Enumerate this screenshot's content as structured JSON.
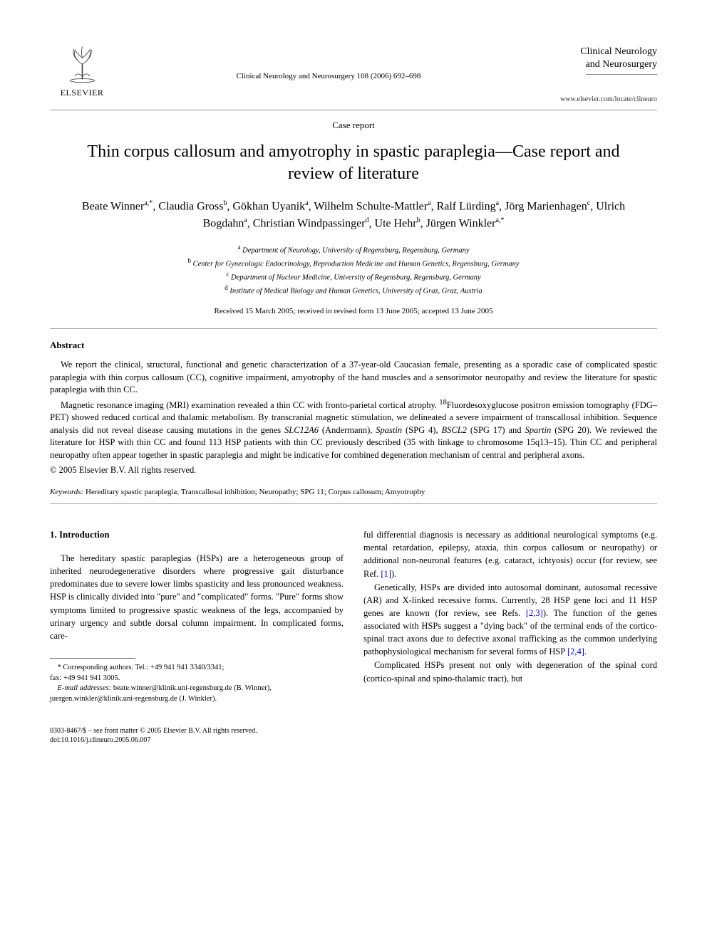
{
  "publisher": {
    "name": "ELSEVIER"
  },
  "journal": {
    "reference": "Clinical Neurology and Neurosurgery 108 (2006) 692–698",
    "title_line1": "Clinical Neurology",
    "title_line2": "and Neurosurgery",
    "url": "www.elsevier.com/locate/clineuro"
  },
  "article": {
    "type": "Case report",
    "title": "Thin corpus callosum and amyotrophy in spastic paraplegia—Case report and review of literature",
    "authors_html": "Beate Winner<sup>a,*</sup>, Claudia Gross<sup>b</sup>, Gökhan Uyanik<sup>a</sup>, Wilhelm Schulte-Mattler<sup>a</sup>, Ralf Lürding<sup>a</sup>, Jörg Marienhagen<sup>c</sup>, Ulrich Bogdahn<sup>a</sup>, Christian Windpassinger<sup>d</sup>, Ute Hehr<sup>b</sup>, Jürgen Winkler<sup>a,*</sup>",
    "affiliations": [
      {
        "sup": "a",
        "text": "Department of Neurology, University of Regensburg, Regensburg, Germany"
      },
      {
        "sup": "b",
        "text": "Center for Gynecologic Endocrinology, Reproduction Medicine and Human Genetics, Regensburg, Germany"
      },
      {
        "sup": "c",
        "text": "Department of Nuclear Medicine, University of Regensburg, Regensburg, Germany"
      },
      {
        "sup": "d",
        "text": "Institute of Medical Biology and Human Genetics, University of Graz, Graz, Austria"
      }
    ],
    "dates": "Received 15 March 2005; received in revised form 13 June 2005; accepted 13 June 2005"
  },
  "abstract": {
    "heading": "Abstract",
    "para1": "We report the clinical, structural, functional and genetic characterization of a 37-year-old Caucasian female, presenting as a sporadic case of complicated spastic paraplegia with thin corpus callosum (CC), cognitive impairment, amyotrophy of the hand muscles and a sensorimotor neuropathy and review the literature for spastic paraplegia with thin CC.",
    "para2_html": "Magnetic resonance imaging (MRI) examination revealed a thin CC with fronto-parietal cortical atrophy. <sup>18</sup>Fluordesoxyglucose positron emission tomography (FDG–PET) showed reduced cortical and thalamic metabolism. By transcranial magnetic stimulation, we delineated a severe impairment of transcallosal inhibition. Sequence analysis did not reveal disease causing mutations in the genes <i>SLC12A6</i> (Andermann), <i>Spastin</i> (SPG 4), <i>BSCL2</i> (SPG 17) and <i>Spartin</i> (SPG 20). We reviewed the literature for HSP with thin CC and found 113 HSP patients with thin CC previously described (35 with linkage to chromosome 15q13–15). Thin CC and peripheral neuropathy often appear together in spastic paraplegia and might be indicative for combined degeneration mechanism of central and peripheral axons.",
    "copyright": "© 2005 Elsevier B.V. All rights reserved."
  },
  "keywords": {
    "label": "Keywords:",
    "text": "Hereditary spastic paraplegia; Transcallosal inhibition; Neuropathy; SPG 11; Corpus callosum; Amyotrophy"
  },
  "body": {
    "section_heading": "1.  Introduction",
    "col1_p1": "The hereditary spastic paraplegias (HSPs) are a heterogeneous group of inherited neurodegenerative disorders where progressive gait disturbance predominates due to severe lower limbs spasticity and less pronounced weakness. HSP is clinically divided into \"pure\" and \"complicated\" forms. \"Pure\" forms show symptoms limited to progressive spastic weakness of the legs, accompanied by urinary urgency and subtle dorsal column impairment. In complicated forms, care-",
    "col2_p1_html": "ful differential diagnosis is necessary as additional neurological symptoms (e.g. mental retardation, epilepsy, ataxia, thin corpus callosum or neuropathy) or additional non-neuronal features (e.g. cataract, ichtyosis) occur (for review, see Ref. <span class=\"ref-link\">[1]</span>).",
    "col2_p2_html": "Genetically, HSPs are divided into autosomal dominant, autosomal recessive (AR) and X-linked recessive forms. Currently, 28 HSP gene loci and 11 HSP genes are known (for review, see Refs. <span class=\"ref-link\">[2,3]</span>). The function of the genes associated with HSPs suggest a \"dying back\" of the terminal ends of the cortico-spinal tract axons due to defective axonal trafficking as the common underlying pathophysiological mechanism for several forms of HSP <span class=\"ref-link\">[2,4]</span>.",
    "col2_p3": "Complicated HSPs present not only with degeneration of the spinal cord (cortico-spinal and spino-thalamic tract), but"
  },
  "footnotes": {
    "corr": "* Corresponding authors. Tel.: +49 941 941 3340/3341;",
    "fax": "fax: +49 941 941 3005.",
    "emails_html": "<i>E-mail addresses:</i> beate.winner@klinik.uni-regensburg.de (B. Winner), juergen.winkler@klinik.uni-regensburg.de (J. Winkler)."
  },
  "bottom": {
    "line1": "0303-8467/$ – see front matter © 2005 Elsevier B.V. All rights reserved.",
    "line2": "doi:10.1016/j.clineuro.2005.06.007"
  },
  "colors": {
    "text": "#000000",
    "link": "#0000d0",
    "rule": "#999999",
    "logo_orange": "#e57a2c"
  }
}
